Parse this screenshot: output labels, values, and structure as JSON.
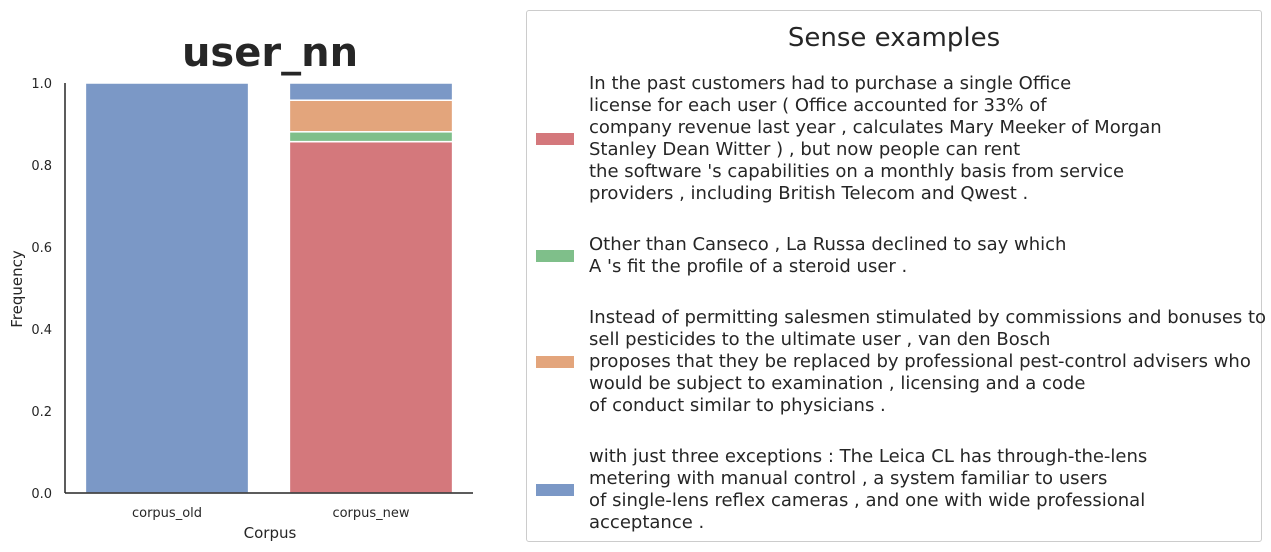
{
  "chart_data": {
    "type": "bar",
    "stacked": true,
    "title": "user_nn",
    "xlabel": "Corpus",
    "ylabel": "Frequency",
    "categories": [
      "corpus_old",
      "corpus_new"
    ],
    "ylim": [
      0,
      1.0
    ],
    "yticks": [
      "0.0",
      "0.2",
      "0.4",
      "0.6",
      "0.8",
      "1.0"
    ],
    "grid": false,
    "series": [
      {
        "color": "#d4787c",
        "values": [
          0.0,
          0.857
        ]
      },
      {
        "color": "#7fbf8a",
        "values": [
          0.0,
          0.024
        ]
      },
      {
        "color": "#e3a57c",
        "values": [
          0.0,
          0.077
        ]
      },
      {
        "color": "#7b98c6",
        "values": [
          1.0,
          0.042
        ]
      }
    ],
    "legend": {
      "title": "Sense examples",
      "placement": "right",
      "entries": [
        {
          "color": "#d4787c",
          "lines": [
            "In the past customers had to purchase a single Office",
            "license for each user ( Office accounted for 33% of",
            "company revenue last year , calculates Mary Meeker of Morgan",
            "Stanley Dean Witter ) , but now people can rent",
            "the software 's capabilities on a monthly basis from service",
            "providers , including British Telecom and Qwest ."
          ]
        },
        {
          "color": "#7fbf8a",
          "lines": [
            "Other than Canseco , La Russa declined to say which",
            "A 's fit the profile of a steroid user ."
          ]
        },
        {
          "color": "#e3a57c",
          "lines": [
            "Instead of permitting salesmen stimulated by commissions and bonuses to",
            "sell pesticides to the ultimate user , van den Bosch",
            "proposes that they be replaced by professional pest-control advisers who",
            "would be subject to examination , licensing and a code",
            "of conduct similar to physicians ."
          ]
        },
        {
          "color": "#7b98c6",
          "lines": [
            "with just three exceptions : The Leica CL has through-the-lens",
            "metering with manual control , a system familiar to users",
            "of single-lens reflex cameras , and one with wide professional",
            "acceptance ."
          ]
        }
      ]
    }
  }
}
